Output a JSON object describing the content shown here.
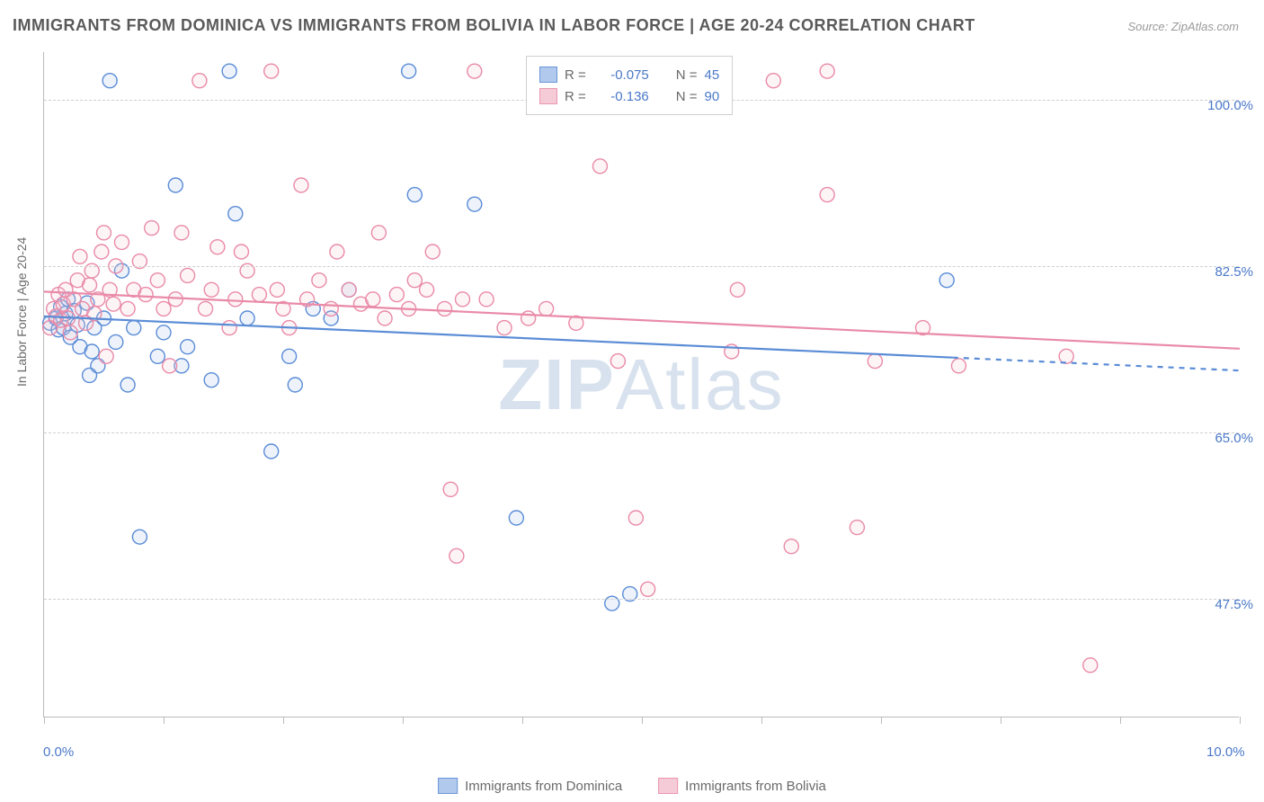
{
  "title": "IMMIGRANTS FROM DOMINICA VS IMMIGRANTS FROM BOLIVIA IN LABOR FORCE | AGE 20-24 CORRELATION CHART",
  "source": "Source: ZipAtlas.com",
  "watermark_bold": "ZIP",
  "watermark_rest": "Atlas",
  "y_axis_label": "In Labor Force | Age 20-24",
  "chart": {
    "type": "scatter",
    "xlim": [
      0,
      10
    ],
    "ylim": [
      35,
      105
    ],
    "x_ticks": [
      0,
      1,
      2,
      3,
      4,
      5,
      6,
      7,
      8,
      9,
      10
    ],
    "x_tick_labels": {
      "0": "0.0%",
      "10": "10.0%"
    },
    "y_gridlines": [
      47.5,
      65.0,
      82.5,
      100.0
    ],
    "y_tick_labels": [
      "47.5%",
      "65.0%",
      "82.5%",
      "100.0%"
    ],
    "background_color": "#ffffff",
    "grid_color": "#cfcfcf",
    "axis_color": "#bbbbbb",
    "marker_radius": 8,
    "marker_fill_opacity": 0.2,
    "trend_width": 2.2,
    "series": [
      {
        "name": "Immigrants from Dominica",
        "stroke": "#5a8cd6",
        "fill": "#a8c4ea",
        "R": "-0.075",
        "N": "45",
        "trend": {
          "y_at_x0": 77.2,
          "y_at_xmax": 71.5,
          "x_data_max": 7.6
        },
        "points": [
          [
            0.05,
            76.5
          ],
          [
            0.1,
            77.0
          ],
          [
            0.12,
            75.8
          ],
          [
            0.14,
            78.2
          ],
          [
            0.16,
            76.0
          ],
          [
            0.18,
            77.5
          ],
          [
            0.2,
            79.0
          ],
          [
            0.22,
            75.0
          ],
          [
            0.25,
            77.8
          ],
          [
            0.28,
            76.3
          ],
          [
            0.3,
            74.0
          ],
          [
            0.36,
            78.6
          ],
          [
            0.38,
            71.0
          ],
          [
            0.4,
            73.5
          ],
          [
            0.42,
            76.0
          ],
          [
            0.45,
            72.0
          ],
          [
            0.5,
            77.0
          ],
          [
            0.55,
            102.0
          ],
          [
            0.6,
            74.5
          ],
          [
            0.65,
            82.0
          ],
          [
            0.7,
            70.0
          ],
          [
            0.75,
            76.0
          ],
          [
            0.8,
            54.0
          ],
          [
            0.95,
            73.0
          ],
          [
            1.0,
            75.5
          ],
          [
            1.1,
            91.0
          ],
          [
            1.15,
            72.0
          ],
          [
            1.2,
            74.0
          ],
          [
            1.4,
            70.5
          ],
          [
            1.55,
            103.0
          ],
          [
            1.6,
            88.0
          ],
          [
            1.7,
            77.0
          ],
          [
            1.9,
            63.0
          ],
          [
            2.05,
            73.0
          ],
          [
            2.1,
            70.0
          ],
          [
            2.25,
            78.0
          ],
          [
            2.4,
            77.0
          ],
          [
            2.55,
            80.0
          ],
          [
            3.05,
            103.0
          ],
          [
            3.1,
            90.0
          ],
          [
            3.6,
            89.0
          ],
          [
            3.95,
            56.0
          ],
          [
            4.9,
            48.0
          ],
          [
            4.75,
            47.0
          ],
          [
            7.55,
            81.0
          ]
        ]
      },
      {
        "name": "Immigrants from Bolivia",
        "stroke": "#e98aa8",
        "fill": "#f6c6d4",
        "R": "-0.136",
        "N": "90",
        "trend": {
          "y_at_x0": 79.8,
          "y_at_xmax": 73.8,
          "x_data_max": 10.0
        },
        "points": [
          [
            0.05,
            76.0
          ],
          [
            0.08,
            78.0
          ],
          [
            0.1,
            77.2
          ],
          [
            0.12,
            79.5
          ],
          [
            0.14,
            76.8
          ],
          [
            0.16,
            78.5
          ],
          [
            0.18,
            80.0
          ],
          [
            0.2,
            77.0
          ],
          [
            0.22,
            75.5
          ],
          [
            0.25,
            79.0
          ],
          [
            0.28,
            81.0
          ],
          [
            0.3,
            83.5
          ],
          [
            0.32,
            78.0
          ],
          [
            0.35,
            76.5
          ],
          [
            0.38,
            80.5
          ],
          [
            0.4,
            82.0
          ],
          [
            0.42,
            77.5
          ],
          [
            0.45,
            79.0
          ],
          [
            0.48,
            84.0
          ],
          [
            0.5,
            86.0
          ],
          [
            0.55,
            80.0
          ],
          [
            0.58,
            78.5
          ],
          [
            0.6,
            82.5
          ],
          [
            0.65,
            85.0
          ],
          [
            0.7,
            78.0
          ],
          [
            0.75,
            80.0
          ],
          [
            0.8,
            83.0
          ],
          [
            0.85,
            79.5
          ],
          [
            0.9,
            86.5
          ],
          [
            0.95,
            81.0
          ],
          [
            1.0,
            78.0
          ],
          [
            1.05,
            72.0
          ],
          [
            1.1,
            79.0
          ],
          [
            1.15,
            86.0
          ],
          [
            1.2,
            81.5
          ],
          [
            1.3,
            102.0
          ],
          [
            1.35,
            78.0
          ],
          [
            1.4,
            80.0
          ],
          [
            1.45,
            84.5
          ],
          [
            1.55,
            76.0
          ],
          [
            1.6,
            79.0
          ],
          [
            1.65,
            84.0
          ],
          [
            1.7,
            82.0
          ],
          [
            1.8,
            79.5
          ],
          [
            1.9,
            103.0
          ],
          [
            1.95,
            80.0
          ],
          [
            2.0,
            78.0
          ],
          [
            2.05,
            76.0
          ],
          [
            2.15,
            91.0
          ],
          [
            2.2,
            79.0
          ],
          [
            2.3,
            81.0
          ],
          [
            2.4,
            78.0
          ],
          [
            2.45,
            84.0
          ],
          [
            2.55,
            80.0
          ],
          [
            2.65,
            78.5
          ],
          [
            2.75,
            79.0
          ],
          [
            2.8,
            86.0
          ],
          [
            2.85,
            77.0
          ],
          [
            2.95,
            79.5
          ],
          [
            3.05,
            78.0
          ],
          [
            3.1,
            81.0
          ],
          [
            3.2,
            80.0
          ],
          [
            3.25,
            84.0
          ],
          [
            3.35,
            78.0
          ],
          [
            3.4,
            59.0
          ],
          [
            3.45,
            52.0
          ],
          [
            3.5,
            79.0
          ],
          [
            3.6,
            103.0
          ],
          [
            3.7,
            79.0
          ],
          [
            3.85,
            76.0
          ],
          [
            4.05,
            77.0
          ],
          [
            4.2,
            78.0
          ],
          [
            4.45,
            76.5
          ],
          [
            4.65,
            93.0
          ],
          [
            4.8,
            72.5
          ],
          [
            4.95,
            56.0
          ],
          [
            5.05,
            48.5
          ],
          [
            5.75,
            73.5
          ],
          [
            5.8,
            80.0
          ],
          [
            6.1,
            102.0
          ],
          [
            6.25,
            53.0
          ],
          [
            6.55,
            90.0
          ],
          [
            6.95,
            72.5
          ],
          [
            7.35,
            76.0
          ],
          [
            7.65,
            72.0
          ],
          [
            8.55,
            73.0
          ],
          [
            8.75,
            40.5
          ],
          [
            6.55,
            103.0
          ],
          [
            6.8,
            55.0
          ],
          [
            0.52,
            73.0
          ]
        ]
      }
    ]
  },
  "legend_top": {
    "R_label": "R =",
    "N_label": "N ="
  },
  "bottom_legend_labels": [
    "Immigrants from Dominica",
    "Immigrants from Bolivia"
  ]
}
